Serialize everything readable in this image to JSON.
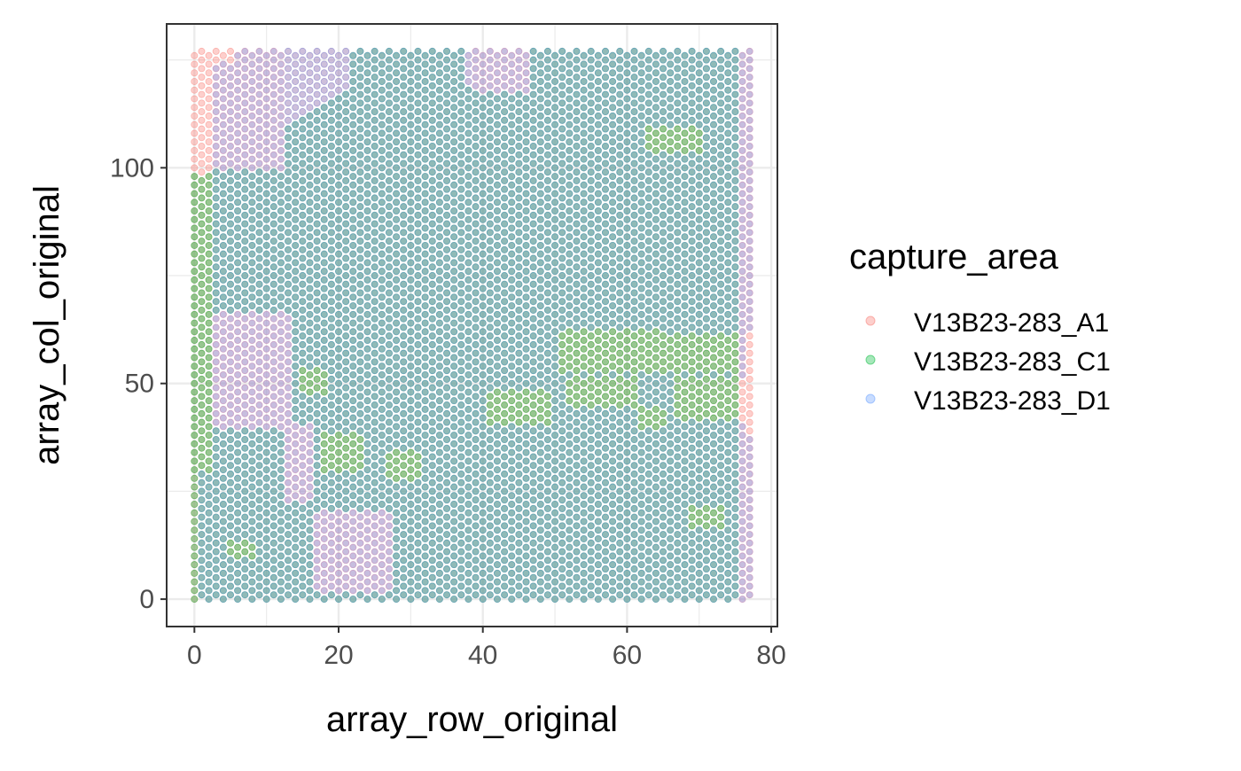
{
  "chart_data": {
    "type": "scatter",
    "title": "",
    "xlabel": "array_row_original",
    "ylabel": "array_col_original",
    "xlim": [
      -3.85,
      80.85
    ],
    "ylim": [
      -6.35,
      133.35
    ],
    "xticks": [
      0,
      20,
      40,
      60,
      80
    ],
    "yticks": [
      0,
      50,
      100
    ],
    "grid": true,
    "legend": {
      "title": "capture_area",
      "placement": "right",
      "entries": [
        "V13B23-283_A1",
        "V13B23-283_C1",
        "V13B23-283_D1"
      ]
    },
    "layout_description": "Hexagonal spot grid: array_row 0-77, array_col 0-127, alternating parity; three overlapping capture areas drawn semi-transparent in draw order A1, C1, D1.",
    "series": [
      {
        "name": "V13B23-283_A1",
        "color": "#F8766D",
        "extent": {
          "x": [
            0,
            77
          ],
          "y": [
            0,
            127
          ]
        },
        "note": "Full-array extent; visible mainly at left edge (x 0-2, y 95-127), top-left corner and right edge (x 77, y 38-62)"
      },
      {
        "name": "V13B23-283_C1",
        "color": "#00BA38",
        "extent": {
          "x": [
            0,
            76
          ],
          "y": [
            0,
            127
          ]
        },
        "region_note": "Tissue covers x 0-76, y 0-98 on the left and up to y 127 for x >= 22; absent top-left",
        "exclusive_patches": [
          {
            "x": [
              18,
              23
            ],
            "y": [
              30,
              38
            ]
          },
          {
            "x": [
              27,
              31
            ],
            "y": [
              28,
              34
            ]
          },
          {
            "x": [
              15,
              18
            ],
            "y": [
              48,
              53
            ]
          },
          {
            "x": [
              41,
              49
            ],
            "y": [
              41,
              48
            ]
          },
          {
            "x": [
              51,
              65
            ],
            "y": [
              53,
              62
            ]
          },
          {
            "x": [
              52,
              61
            ],
            "y": [
              45,
              51
            ]
          },
          {
            "x": [
              62,
              65
            ],
            "y": [
              40,
              44
            ]
          },
          {
            "x": [
              66,
              75
            ],
            "y": [
              53,
              61
            ]
          },
          {
            "x": [
              67,
              76
            ],
            "y": [
              42,
              51
            ]
          },
          {
            "x": [
              0,
              2
            ],
            "y": [
              30,
              98
            ]
          },
          {
            "x": [
              5,
              8
            ],
            "y": [
              10,
              13
            ]
          },
          {
            "x": [
              69,
              73
            ],
            "y": [
              17,
              21
            ]
          },
          {
            "x": [
              63,
              70
            ],
            "y": [
              104,
              109
            ]
          }
        ]
      },
      {
        "name": "V13B23-283_D1",
        "color": "#619CFF",
        "extent": {
          "x": [
            1,
            77
          ],
          "y": [
            0,
            127
          ]
        },
        "exclusive_patches": [
          {
            "x": [
              1,
              12
            ],
            "y": [
              100,
              127
            ]
          },
          {
            "x": [
              76,
              77
            ],
            "y": [
              0,
              127
            ]
          },
          {
            "x": [
              17,
              27
            ],
            "y": [
              2,
              20
            ]
          },
          {
            "x": [
              3,
              13
            ],
            "y": [
              40,
              66
            ]
          },
          {
            "x": [
              13,
              16
            ],
            "y": [
              23,
              40
            ]
          },
          {
            "x": [
              39,
              46
            ],
            "y": [
              118,
              127
            ]
          }
        ]
      }
    ]
  }
}
